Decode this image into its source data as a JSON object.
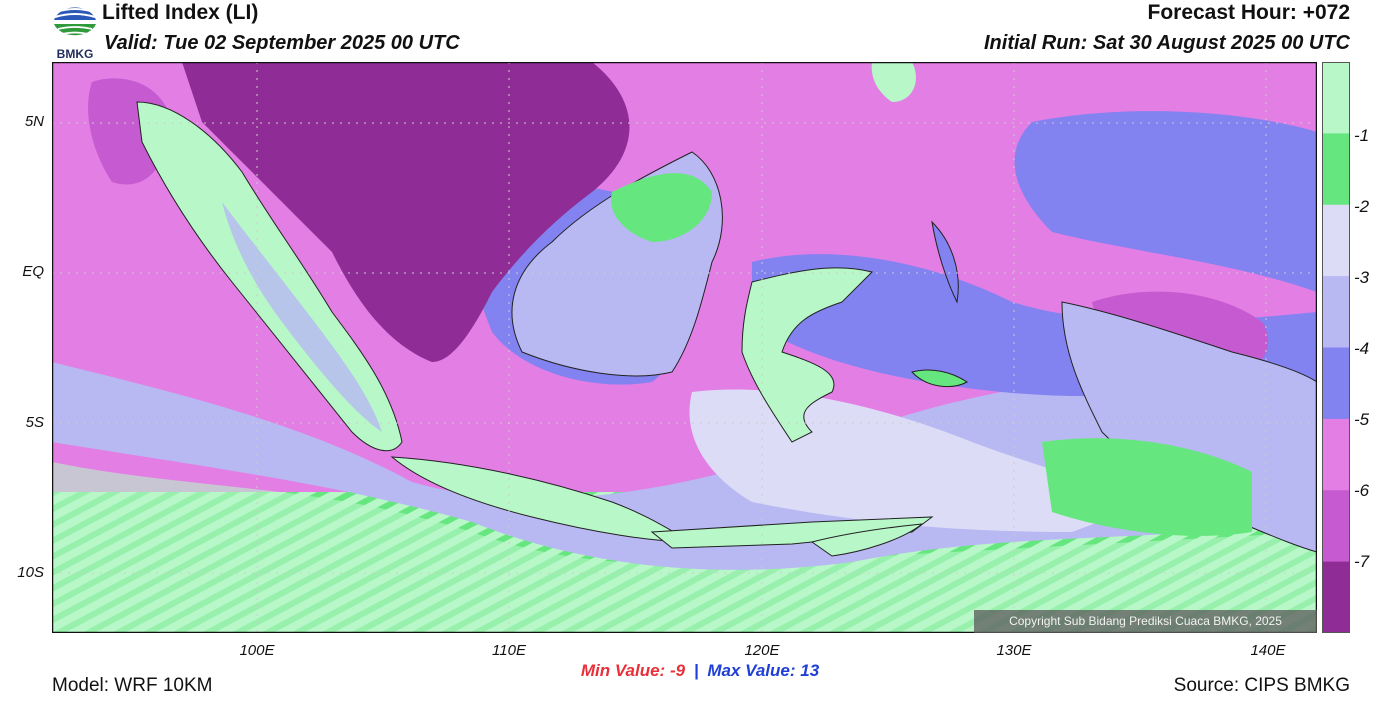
{
  "header": {
    "title": "Lifted Index (LI)",
    "valid": "Valid: Tue 02 September 2025 00 UTC",
    "forecast_hour": "Forecast Hour: +072",
    "initial_run": "Initial Run: Sat 30 August 2025 00 UTC"
  },
  "logo": {
    "text": "BMKG",
    "icon": "bmkg-logo-icon"
  },
  "map": {
    "lat_labels": [
      "5N",
      "EQ",
      "5S",
      "10S"
    ],
    "lon_labels": [
      "100E",
      "110E",
      "120E",
      "130E",
      "140E"
    ],
    "copyright": "Copyright Sub Bidang Prediksi Cuaca BMKG, 2025"
  },
  "colorbar": {
    "labels": [
      "-1",
      "-2",
      "-3",
      "-4",
      "-5",
      "-6",
      "-7"
    ],
    "colors": [
      "#b7f7c8",
      "#66e67f",
      "#dcdcf7",
      "#b8b8f2",
      "#8282f0",
      "#e37ee5",
      "#c65ad0",
      "#8f2c95"
    ]
  },
  "stats": {
    "min_label": "Min Value:",
    "min_value": "-9",
    "separator": "|",
    "max_label": "Max Value:",
    "max_value": "13"
  },
  "footer": {
    "model": "Model: WRF 10KM",
    "source": "Source: CIPS BMKG"
  }
}
